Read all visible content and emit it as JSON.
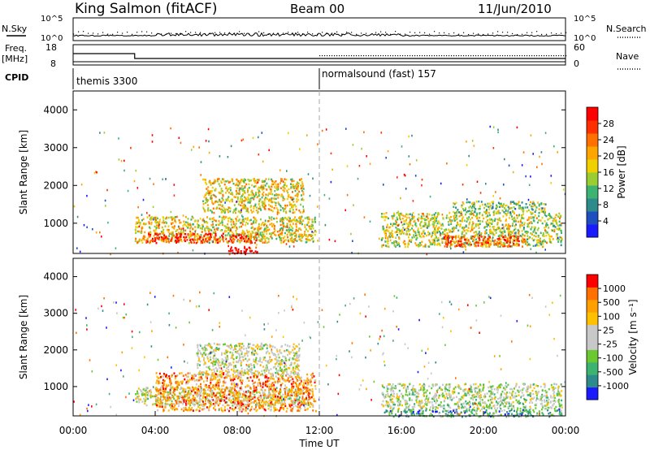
{
  "header": {
    "station": "King Salmon (fitACF)",
    "beam": "Beam 00",
    "date": "11/Jun/2010"
  },
  "status_panel": {
    "nsky_label": "N.Sky",
    "nsearch_label": "N.Search",
    "noise_ticks": [
      "10^5",
      "10^0"
    ],
    "freq_label": "Freq.",
    "freq_unit": "[MHz]",
    "freq_ticks": [
      "18",
      "8"
    ],
    "nave_label": "Nave",
    "nave_ticks": [
      "60",
      "0"
    ],
    "cpid_label": "CPID",
    "cpid_segments": [
      {
        "start_hour": 0,
        "name": "themis 3300"
      },
      {
        "start_hour": 12,
        "name": "normalsound (fast) 157"
      }
    ]
  },
  "time_axis": {
    "label": "Time UT",
    "ticks": [
      "00:00",
      "04:00",
      "08:00",
      "12:00",
      "16:00",
      "20:00",
      "00:00"
    ]
  },
  "chart_data": [
    {
      "type": "heatmap",
      "name": "power_panel",
      "ylabel": "Slant Range [km]",
      "yticks": [
        "1000",
        "2000",
        "3000",
        "4000"
      ],
      "ylim": [
        200,
        4500
      ],
      "xlim_hours": [
        0,
        24
      ],
      "colorbar": {
        "label": "Power [dB]",
        "ticks": [
          "4",
          "8",
          "12",
          "16",
          "20",
          "24",
          "28"
        ],
        "colors": [
          "#1a1aff",
          "#1f4fbf",
          "#2e8b8b",
          "#3cb371",
          "#9acd32",
          "#f0d000",
          "#ffa500",
          "#ff7000",
          "#ff3000",
          "#ff0000"
        ]
      },
      "regions": [
        {
          "t0": 3.0,
          "t1": 11.8,
          "r0": 500,
          "r1": 1200,
          "level": 0.55
        },
        {
          "t0": 3.5,
          "t1": 9.0,
          "r0": 500,
          "r1": 750,
          "level": 0.9
        },
        {
          "t0": 6.3,
          "t1": 11.2,
          "r0": 1300,
          "r1": 2200,
          "level": 0.55
        },
        {
          "t0": 7.5,
          "t1": 9.0,
          "r0": 200,
          "r1": 400,
          "level": 0.95
        },
        {
          "t0": 15.0,
          "t1": 23.8,
          "r0": 400,
          "r1": 1300,
          "level": 0.5
        },
        {
          "t0": 18.0,
          "t1": 22.0,
          "r0": 400,
          "r1": 700,
          "level": 0.85
        },
        {
          "t0": 18.5,
          "t1": 23.0,
          "r0": 1300,
          "r1": 1600,
          "level": 0.4
        }
      ]
    },
    {
      "type": "heatmap",
      "name": "velocity_panel",
      "ylabel": "Slant Range [km]",
      "yticks": [
        "1000",
        "2000",
        "3000",
        "4000"
      ],
      "ylim": [
        200,
        4500
      ],
      "xlim_hours": [
        0,
        24
      ],
      "colorbar": {
        "label": "Velocity [m s⁻¹]",
        "ticks": [
          "1000",
          "500",
          "100",
          "25",
          "-25",
          "-100",
          "-500",
          "-1000"
        ],
        "colors": [
          "#1a1aff",
          "#2e8b8b",
          "#3cb371",
          "#6cc830",
          "#c8c8c8",
          "#c8c8c8",
          "#ffc000",
          "#ffa000",
          "#ff7000",
          "#ff0000"
        ]
      },
      "regions": [
        {
          "t0": 3.0,
          "t1": 11.5,
          "r0": 500,
          "r1": 1000,
          "level": 0.5
        },
        {
          "t0": 4.0,
          "t1": 11.8,
          "r0": 350,
          "r1": 1400,
          "level": 0.75
        },
        {
          "t0": 6.0,
          "t1": 11.0,
          "r0": 1300,
          "r1": 2200,
          "level": 0.5
        },
        {
          "t0": 15.0,
          "t1": 23.8,
          "r0": 400,
          "r1": 1100,
          "level": 0.45
        },
        {
          "t0": 15.0,
          "t1": 23.8,
          "r0": 200,
          "r1": 400,
          "level": 0.25
        }
      ]
    }
  ]
}
